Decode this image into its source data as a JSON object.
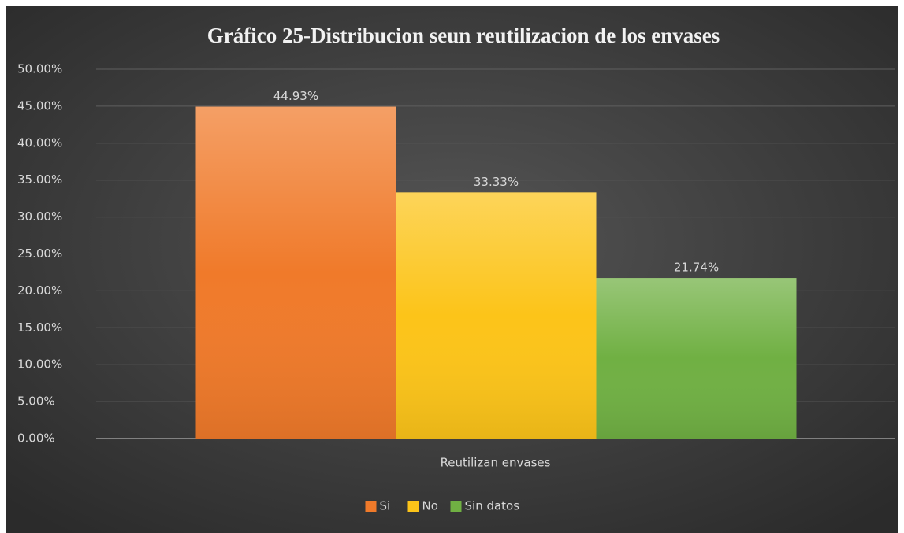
{
  "chart_data": {
    "type": "bar",
    "title": "Gráfico 25-Distribucion seun reutilizacion de los envases",
    "categories": [
      "Reutilizan envases"
    ],
    "series": [
      {
        "name": "Si",
        "color": "#f07a2a",
        "values": [
          44.93
        ],
        "value_labels": [
          "44.93%"
        ]
      },
      {
        "name": "No",
        "color": "#fcc419",
        "values": [
          33.33
        ],
        "value_labels": [
          "33.33%"
        ]
      },
      {
        "name": "Sin datos",
        "color": "#70b043",
        "values": [
          21.74
        ],
        "value_labels": [
          "21.74%"
        ]
      }
    ],
    "ylim": [
      0,
      50
    ],
    "yticks": [
      {
        "value": 0,
        "label": "0.00%"
      },
      {
        "value": 5,
        "label": "5.00%"
      },
      {
        "value": 10,
        "label": "10.00%"
      },
      {
        "value": 15,
        "label": "15.00%"
      },
      {
        "value": 20,
        "label": "20.00%"
      },
      {
        "value": 25,
        "label": "25.00%"
      },
      {
        "value": 30,
        "label": "30.00%"
      },
      {
        "value": 35,
        "label": "35.00%"
      },
      {
        "value": 40,
        "label": "40.00%"
      },
      {
        "value": 45,
        "label": "45.00%"
      },
      {
        "value": 50,
        "label": "50.00%"
      }
    ],
    "grid": true,
    "legend": "bottom"
  }
}
